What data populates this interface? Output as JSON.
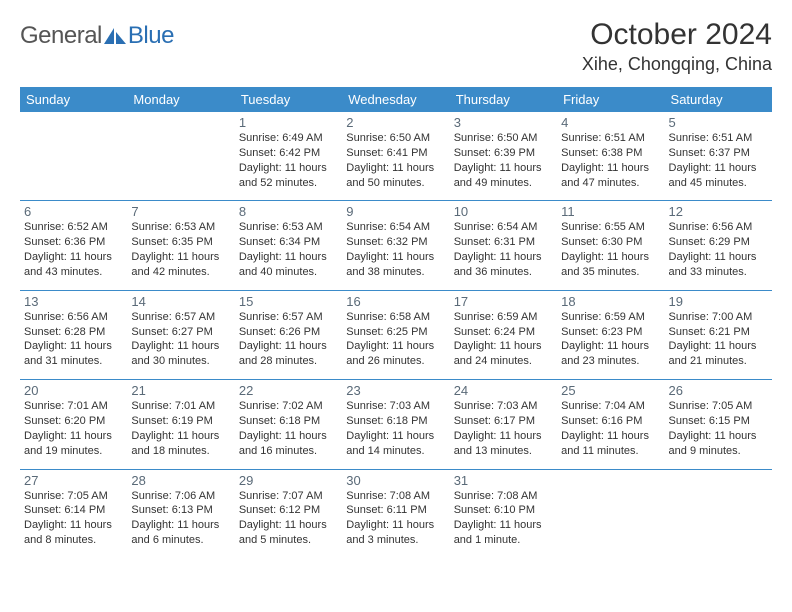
{
  "logo": {
    "part1": "General",
    "part2": "Blue"
  },
  "title": "October 2024",
  "location": "Xihe, Chongqing, China",
  "colors": {
    "header_bg": "#3b8bc9",
    "header_text": "#ffffff",
    "daynum_color": "#5a6a78",
    "text_color": "#333333",
    "rule_color": "#3b8bc9",
    "background": "#ffffff",
    "logo_gray": "#555555",
    "logo_blue": "#2a6fb3"
  },
  "typography": {
    "title_fontsize": 30,
    "location_fontsize": 18,
    "dow_fontsize": 13,
    "daynum_fontsize": 13,
    "info_fontsize": 11,
    "logo_fontsize": 24
  },
  "days_of_week": [
    "Sunday",
    "Monday",
    "Tuesday",
    "Wednesday",
    "Thursday",
    "Friday",
    "Saturday"
  ],
  "weeks": [
    [
      null,
      null,
      {
        "n": "1",
        "sr": "Sunrise: 6:49 AM",
        "ss": "Sunset: 6:42 PM",
        "dl": "Daylight: 11 hours and 52 minutes."
      },
      {
        "n": "2",
        "sr": "Sunrise: 6:50 AM",
        "ss": "Sunset: 6:41 PM",
        "dl": "Daylight: 11 hours and 50 minutes."
      },
      {
        "n": "3",
        "sr": "Sunrise: 6:50 AM",
        "ss": "Sunset: 6:39 PM",
        "dl": "Daylight: 11 hours and 49 minutes."
      },
      {
        "n": "4",
        "sr": "Sunrise: 6:51 AM",
        "ss": "Sunset: 6:38 PM",
        "dl": "Daylight: 11 hours and 47 minutes."
      },
      {
        "n": "5",
        "sr": "Sunrise: 6:51 AM",
        "ss": "Sunset: 6:37 PM",
        "dl": "Daylight: 11 hours and 45 minutes."
      }
    ],
    [
      {
        "n": "6",
        "sr": "Sunrise: 6:52 AM",
        "ss": "Sunset: 6:36 PM",
        "dl": "Daylight: 11 hours and 43 minutes."
      },
      {
        "n": "7",
        "sr": "Sunrise: 6:53 AM",
        "ss": "Sunset: 6:35 PM",
        "dl": "Daylight: 11 hours and 42 minutes."
      },
      {
        "n": "8",
        "sr": "Sunrise: 6:53 AM",
        "ss": "Sunset: 6:34 PM",
        "dl": "Daylight: 11 hours and 40 minutes."
      },
      {
        "n": "9",
        "sr": "Sunrise: 6:54 AM",
        "ss": "Sunset: 6:32 PM",
        "dl": "Daylight: 11 hours and 38 minutes."
      },
      {
        "n": "10",
        "sr": "Sunrise: 6:54 AM",
        "ss": "Sunset: 6:31 PM",
        "dl": "Daylight: 11 hours and 36 minutes."
      },
      {
        "n": "11",
        "sr": "Sunrise: 6:55 AM",
        "ss": "Sunset: 6:30 PM",
        "dl": "Daylight: 11 hours and 35 minutes."
      },
      {
        "n": "12",
        "sr": "Sunrise: 6:56 AM",
        "ss": "Sunset: 6:29 PM",
        "dl": "Daylight: 11 hours and 33 minutes."
      }
    ],
    [
      {
        "n": "13",
        "sr": "Sunrise: 6:56 AM",
        "ss": "Sunset: 6:28 PM",
        "dl": "Daylight: 11 hours and 31 minutes."
      },
      {
        "n": "14",
        "sr": "Sunrise: 6:57 AM",
        "ss": "Sunset: 6:27 PM",
        "dl": "Daylight: 11 hours and 30 minutes."
      },
      {
        "n": "15",
        "sr": "Sunrise: 6:57 AM",
        "ss": "Sunset: 6:26 PM",
        "dl": "Daylight: 11 hours and 28 minutes."
      },
      {
        "n": "16",
        "sr": "Sunrise: 6:58 AM",
        "ss": "Sunset: 6:25 PM",
        "dl": "Daylight: 11 hours and 26 minutes."
      },
      {
        "n": "17",
        "sr": "Sunrise: 6:59 AM",
        "ss": "Sunset: 6:24 PM",
        "dl": "Daylight: 11 hours and 24 minutes."
      },
      {
        "n": "18",
        "sr": "Sunrise: 6:59 AM",
        "ss": "Sunset: 6:23 PM",
        "dl": "Daylight: 11 hours and 23 minutes."
      },
      {
        "n": "19",
        "sr": "Sunrise: 7:00 AM",
        "ss": "Sunset: 6:21 PM",
        "dl": "Daylight: 11 hours and 21 minutes."
      }
    ],
    [
      {
        "n": "20",
        "sr": "Sunrise: 7:01 AM",
        "ss": "Sunset: 6:20 PM",
        "dl": "Daylight: 11 hours and 19 minutes."
      },
      {
        "n": "21",
        "sr": "Sunrise: 7:01 AM",
        "ss": "Sunset: 6:19 PM",
        "dl": "Daylight: 11 hours and 18 minutes."
      },
      {
        "n": "22",
        "sr": "Sunrise: 7:02 AM",
        "ss": "Sunset: 6:18 PM",
        "dl": "Daylight: 11 hours and 16 minutes."
      },
      {
        "n": "23",
        "sr": "Sunrise: 7:03 AM",
        "ss": "Sunset: 6:18 PM",
        "dl": "Daylight: 11 hours and 14 minutes."
      },
      {
        "n": "24",
        "sr": "Sunrise: 7:03 AM",
        "ss": "Sunset: 6:17 PM",
        "dl": "Daylight: 11 hours and 13 minutes."
      },
      {
        "n": "25",
        "sr": "Sunrise: 7:04 AM",
        "ss": "Sunset: 6:16 PM",
        "dl": "Daylight: 11 hours and 11 minutes."
      },
      {
        "n": "26",
        "sr": "Sunrise: 7:05 AM",
        "ss": "Sunset: 6:15 PM",
        "dl": "Daylight: 11 hours and 9 minutes."
      }
    ],
    [
      {
        "n": "27",
        "sr": "Sunrise: 7:05 AM",
        "ss": "Sunset: 6:14 PM",
        "dl": "Daylight: 11 hours and 8 minutes."
      },
      {
        "n": "28",
        "sr": "Sunrise: 7:06 AM",
        "ss": "Sunset: 6:13 PM",
        "dl": "Daylight: 11 hours and 6 minutes."
      },
      {
        "n": "29",
        "sr": "Sunrise: 7:07 AM",
        "ss": "Sunset: 6:12 PM",
        "dl": "Daylight: 11 hours and 5 minutes."
      },
      {
        "n": "30",
        "sr": "Sunrise: 7:08 AM",
        "ss": "Sunset: 6:11 PM",
        "dl": "Daylight: 11 hours and 3 minutes."
      },
      {
        "n": "31",
        "sr": "Sunrise: 7:08 AM",
        "ss": "Sunset: 6:10 PM",
        "dl": "Daylight: 11 hours and 1 minute."
      },
      null,
      null
    ]
  ]
}
